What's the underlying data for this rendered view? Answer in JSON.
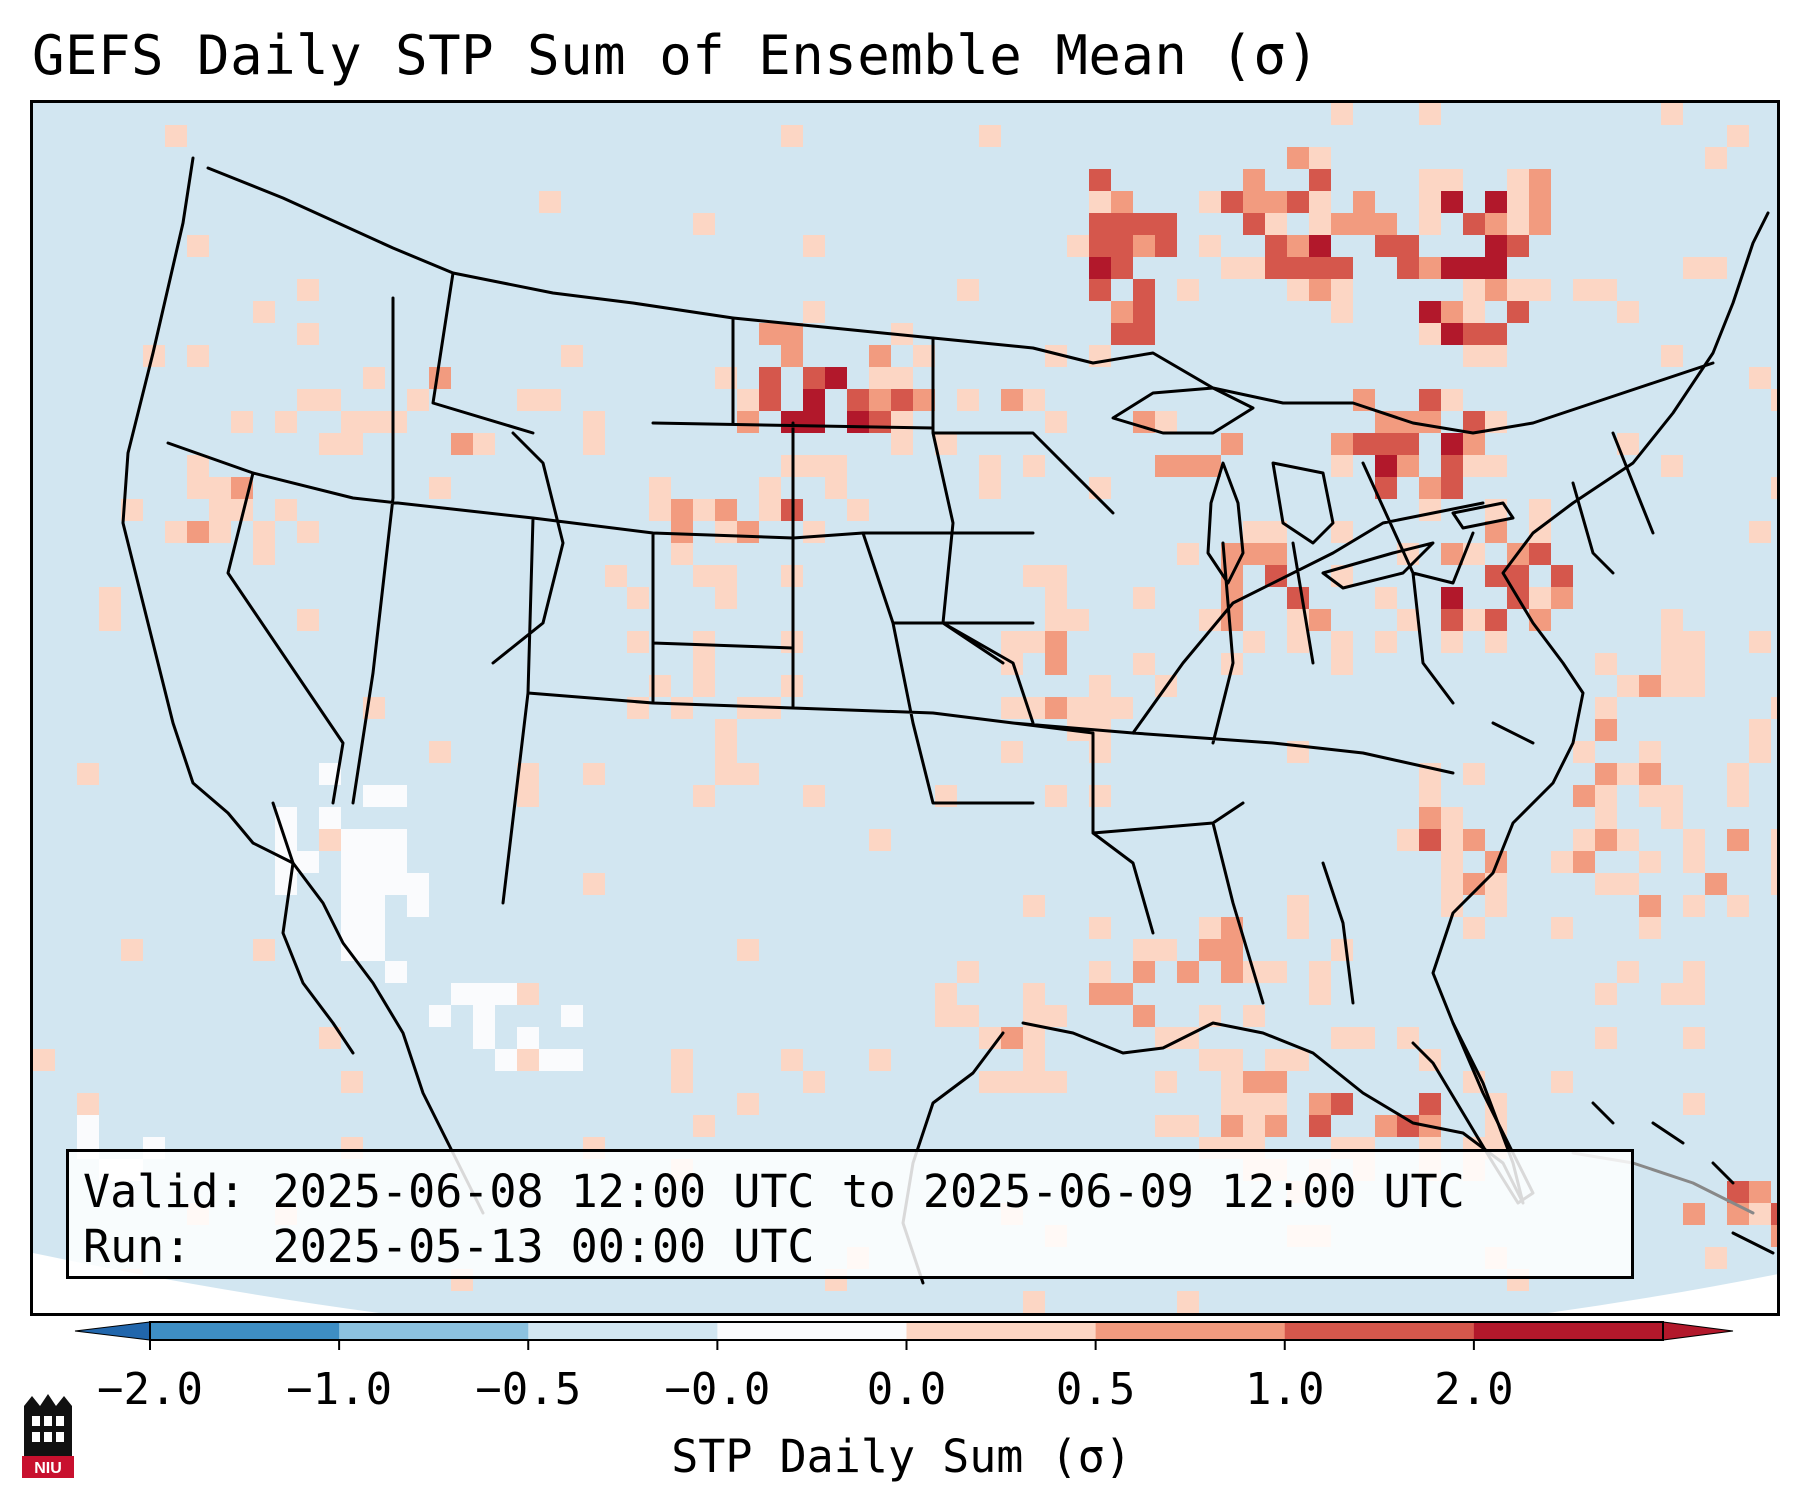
{
  "title": "GEFS Daily STP Sum of Ensemble Mean (σ)",
  "info": {
    "valid_label": "Valid:",
    "valid_text": "2025-06-08 12:00 UTC to 2025-06-09 12:00 UTC",
    "run_label": "Run:",
    "run_text": "2025-05-13 00:00 UTC"
  },
  "colorbar": {
    "label": "STP Daily Sum (σ)",
    "ticks": [
      "−2.0",
      "−1.0",
      "−0.5",
      "−0.0",
      "0.0",
      "0.5",
      "1.0",
      "2.0"
    ],
    "colors": [
      "#3e8ec4",
      "#8cc2e0",
      "#d2e6f1",
      "#fafbfd",
      "#fcd6c4",
      "#f29b7f",
      "#d5574c",
      "#b2182b"
    ],
    "extend_under_color": "#2166ac",
    "extend_over_color": "#b2182b"
  },
  "logo": {
    "text": "NIU",
    "icon": "niu-castle-icon",
    "color": "#c8102e"
  },
  "map": {
    "projection": "lambert-conformal-conus",
    "ocean_color": "#d2e6f1"
  }
}
